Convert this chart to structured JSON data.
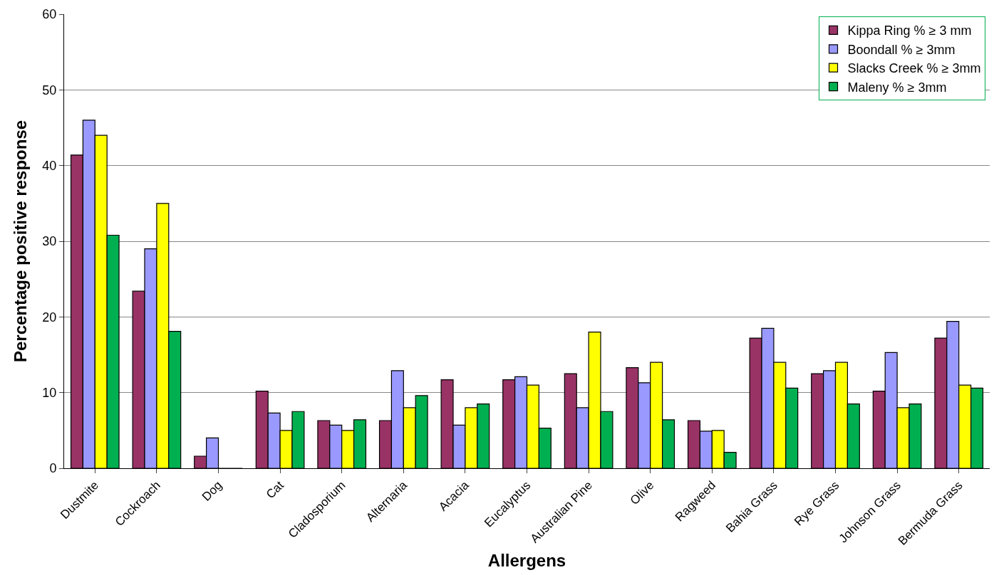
{
  "chart_data": {
    "type": "bar",
    "xlabel": "Allergens",
    "ylabel": "Percentage positive response",
    "categories": [
      "Dustmite",
      "Cockroach",
      "Dog",
      "Cat",
      "Cladosporium",
      "Alternaria",
      "Acacia",
      "Eucalyptus",
      "Australian Pine",
      "Olive",
      "Ragweed",
      "Bahia Grass",
      "Rye Grass",
      "Johnson Grass",
      "Bermuda Grass"
    ],
    "series": [
      {
        "name": "Kippa Ring % ≥ 3 mm",
        "color": "#993366",
        "values": [
          41.4,
          23.4,
          1.6,
          10.2,
          6.3,
          6.3,
          11.7,
          11.7,
          12.5,
          13.3,
          6.3,
          17.2,
          12.5,
          10.2,
          17.2
        ]
      },
      {
        "name": "Boondall % ≥ 3mm",
        "color": "#9999ff",
        "values": [
          46,
          29,
          4,
          7.3,
          5.7,
          12.9,
          5.7,
          12.1,
          8,
          11.3,
          4.9,
          18.5,
          12.9,
          15.3,
          19.4
        ]
      },
      {
        "name": "Slacks Creek % ≥ 3mm",
        "color": "#ffff00",
        "values": [
          44,
          35,
          0,
          5,
          5,
          8,
          8,
          11,
          18,
          14,
          5,
          14,
          14,
          8,
          11
        ]
      },
      {
        "name": "Maleny % ≥ 3mm",
        "color": "#00b050",
        "values": [
          30.8,
          18.1,
          0,
          7.5,
          6.4,
          9.6,
          8.5,
          5.3,
          7.5,
          6.4,
          2.1,
          10.6,
          8.5,
          8.5,
          10.6
        ]
      }
    ],
    "ylim": [
      0,
      60
    ],
    "yticks": [
      0,
      10,
      20,
      30,
      40,
      50,
      60
    ],
    "grid": "y",
    "legend": "top right"
  }
}
